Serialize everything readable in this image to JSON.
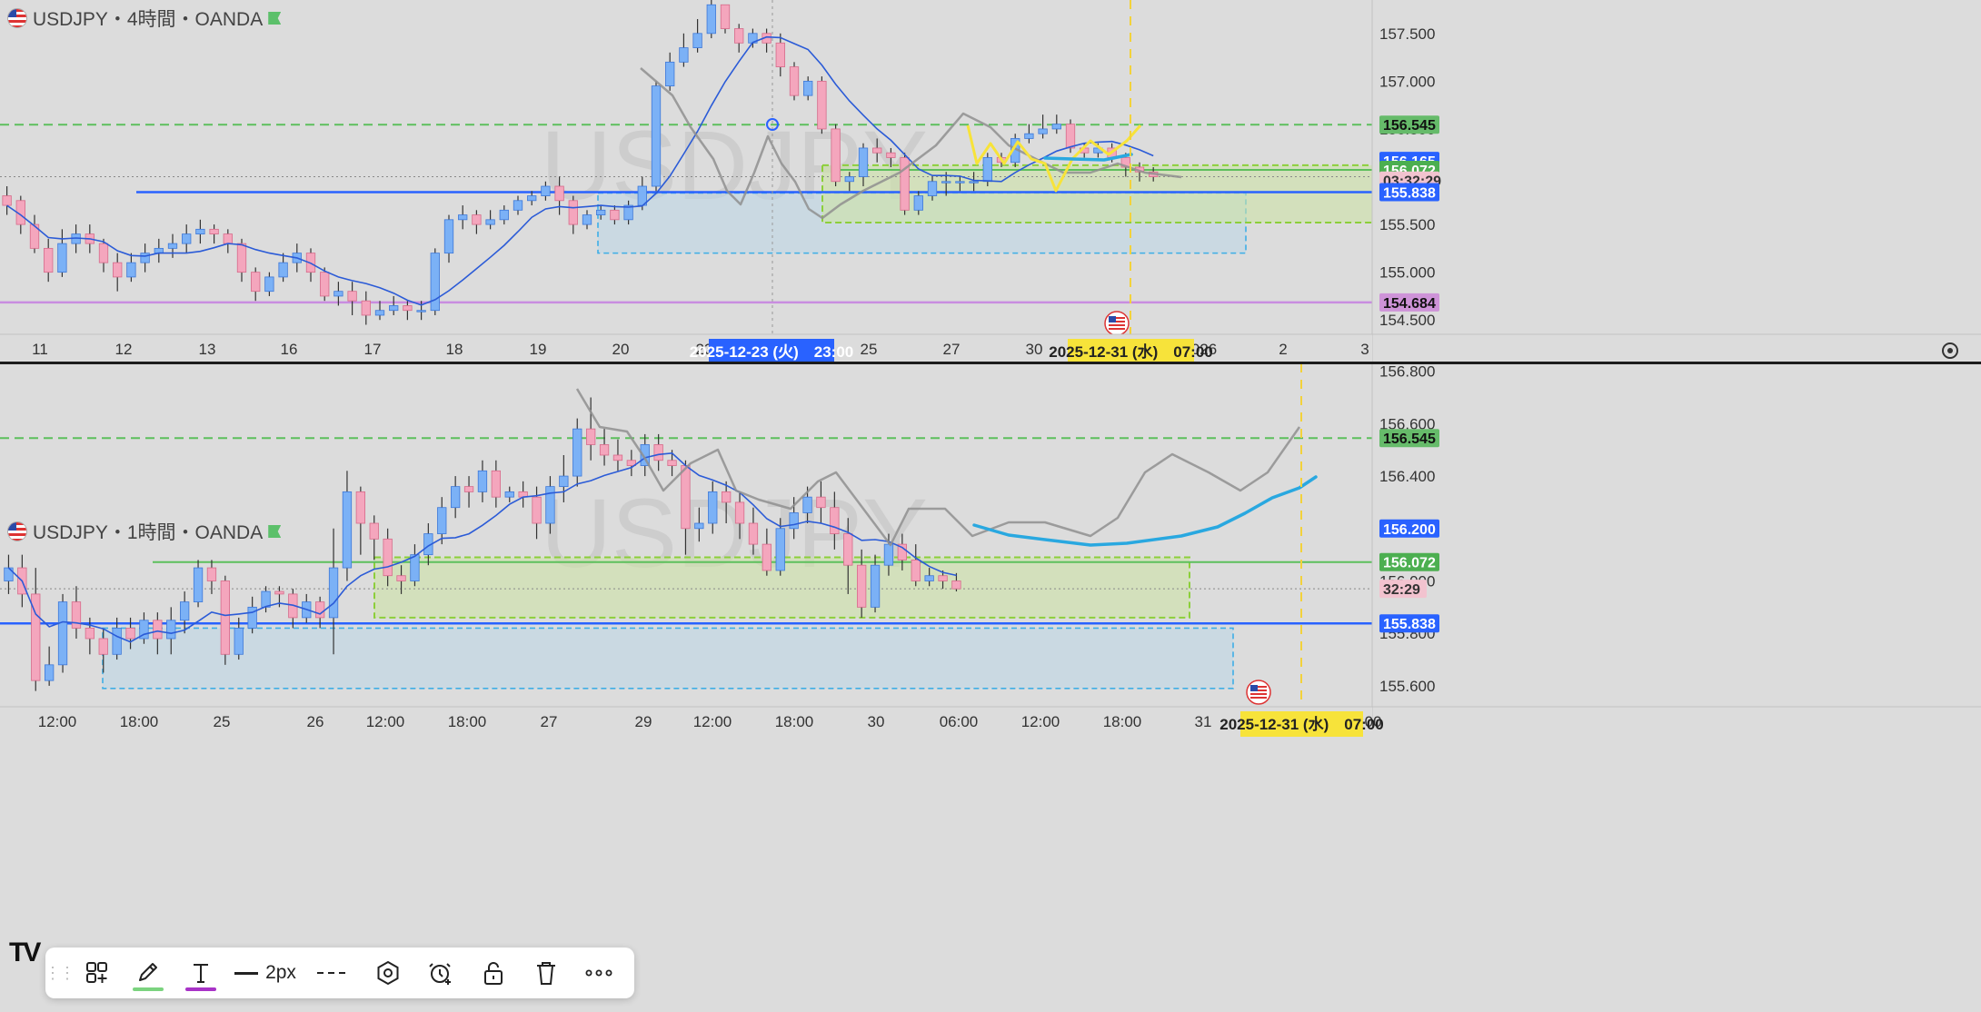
{
  "panes": [
    {
      "id": "top",
      "title": "USDJPY・4時間・OANDA",
      "watermark": "USDJPY",
      "price_axis": {
        "min": 154.35,
        "max": 157.85,
        "ticks": [
          "157.500",
          "157.000",
          "156.500",
          "156.000",
          "155.500",
          "155.000",
          "154.500"
        ],
        "tick_values": [
          157.5,
          157.0,
          156.5,
          156.0,
          155.5,
          155.0,
          154.5
        ]
      },
      "time_labels": [
        "11",
        "12",
        "13",
        "16",
        "17",
        "18",
        "19",
        "20",
        "23",
        "25",
        "27",
        "30",
        "026",
        "2",
        "3"
      ],
      "price_labels": [
        {
          "text": "156.545",
          "value": 156.545,
          "bg": "#66bb6a",
          "fg": "#111111"
        },
        {
          "text": "156.165",
          "value": 156.165,
          "bg": "#2962ff",
          "fg": "#ffffff"
        },
        {
          "text": "156.072",
          "value": 156.072,
          "bg": "#4caf50",
          "fg": "#ffffff"
        },
        {
          "text": "03:32:29",
          "value": 155.96,
          "bg": "#f2c3cf",
          "fg": "#333333"
        },
        {
          "text": "155.838",
          "value": 155.838,
          "bg": "#2962ff",
          "fg": "#ffffff"
        },
        {
          "text": "154.684",
          "value": 154.684,
          "bg": "#ce93d8",
          "fg": "#111111"
        }
      ],
      "crosshair_time_label": "2025-12-23 (火)　23:00",
      "event_time_label": "2025-12-31 (水)　07:00"
    },
    {
      "id": "bottom",
      "title": "USDJPY・1時間・OANDA",
      "watermark": "USDJPY",
      "price_axis": {
        "min": 155.52,
        "max": 156.83,
        "ticks": [
          "156.800",
          "156.600",
          "156.400",
          "156.200",
          "156.000",
          "155.800",
          "155.600"
        ],
        "tick_values": [
          156.8,
          156.6,
          156.4,
          156.2,
          156.0,
          155.8,
          155.6
        ]
      },
      "time_labels": [
        "12:00",
        "18:00",
        "25",
        "26",
        "12:00",
        "18:00",
        "27",
        "29",
        "12:00",
        "18:00",
        "30",
        "06:00",
        "12:00",
        "18:00",
        "31",
        "2:00"
      ],
      "price_labels": [
        {
          "text": "156.545",
          "value": 156.545,
          "bg": "#66bb6a",
          "fg": "#111111"
        },
        {
          "text": "156.200",
          "value": 156.2,
          "bg": "#2962ff",
          "fg": "#ffffff"
        },
        {
          "text": "156.072",
          "value": 156.072,
          "bg": "#4caf50",
          "fg": "#ffffff"
        },
        {
          "text": "32:29",
          "value": 155.97,
          "bg": "#f2c3cf",
          "fg": "#333333"
        },
        {
          "text": "155.838",
          "value": 155.838,
          "bg": "#2962ff",
          "fg": "#ffffff"
        }
      ],
      "event_time_label": "2025-12-31 (水)　07:00"
    }
  ],
  "colors": {
    "up": "#7bb1f6",
    "down": "#f4a6bd",
    "ma": "#2b5bd7",
    "forecast": "#29a8e0",
    "hand": "#8f8f8f",
    "yellow": "#f7e33a",
    "support": "#2962ff",
    "magenta": "#c98de0",
    "resistance": "#5cbf5c"
  },
  "toolbar": {
    "width_label": "2px",
    "items": [
      "drag-handle",
      "add-to-favorites-icon",
      "pencil-icon",
      "text-tool-icon",
      "line-width",
      "line-style-dashed-icon",
      "settings-hexagon-icon",
      "alert-clock-icon",
      "lock-icon",
      "trash-icon",
      "more-icon"
    ]
  },
  "chart_data": [
    {
      "type": "candlestick",
      "title": "USDJPY・4時間・OANDA",
      "ylim": [
        154.35,
        157.85
      ],
      "x_tick_labels": [
        "11",
        "12",
        "13",
        "16",
        "17",
        "18",
        "19",
        "20",
        "23",
        "25",
        "27",
        "30",
        "026",
        "2",
        "3"
      ],
      "y_tick_labels": [
        "157.500",
        "157.000",
        "156.500",
        "156.000",
        "155.500",
        "155.000",
        "154.500"
      ],
      "horizontal_lines": [
        156.545,
        156.072,
        155.838,
        154.684
      ],
      "candles": [
        [
          155.8,
          155.7,
          155.6,
          155.9
        ],
        [
          155.75,
          155.5,
          155.4,
          155.8
        ],
        [
          155.5,
          155.25,
          155.2,
          155.6
        ],
        [
          155.25,
          155.0,
          154.9,
          155.35
        ],
        [
          155.0,
          155.3,
          154.95,
          155.45
        ],
        [
          155.3,
          155.4,
          155.2,
          155.5
        ],
        [
          155.4,
          155.3,
          155.2,
          155.5
        ],
        [
          155.3,
          155.1,
          155.0,
          155.35
        ],
        [
          155.1,
          154.95,
          154.8,
          155.2
        ],
        [
          154.95,
          155.1,
          154.9,
          155.2
        ],
        [
          155.1,
          155.2,
          155.0,
          155.3
        ],
        [
          155.2,
          155.25,
          155.1,
          155.35
        ],
        [
          155.25,
          155.3,
          155.15,
          155.4
        ],
        [
          155.3,
          155.4,
          155.2,
          155.5
        ],
        [
          155.4,
          155.45,
          155.3,
          155.55
        ],
        [
          155.45,
          155.4,
          155.3,
          155.5
        ],
        [
          155.4,
          155.3,
          155.2,
          155.45
        ],
        [
          155.3,
          155.0,
          154.9,
          155.35
        ],
        [
          155.0,
          154.8,
          154.7,
          155.05
        ],
        [
          154.8,
          154.95,
          154.75,
          155.0
        ],
        [
          154.95,
          155.1,
          154.9,
          155.2
        ],
        [
          155.1,
          155.2,
          155.0,
          155.3
        ],
        [
          155.2,
          155.0,
          154.9,
          155.25
        ],
        [
          155.0,
          154.75,
          154.7,
          155.05
        ],
        [
          154.75,
          154.8,
          154.65,
          154.9
        ],
        [
          154.8,
          154.7,
          154.55,
          154.9
        ],
        [
          154.7,
          154.55,
          154.45,
          154.8
        ],
        [
          154.55,
          154.6,
          154.5,
          154.7
        ],
        [
          154.6,
          154.65,
          154.55,
          154.75
        ],
        [
          154.65,
          154.6,
          154.5,
          154.7
        ],
        [
          154.6,
          154.6,
          154.5,
          154.7
        ],
        [
          154.6,
          155.2,
          154.55,
          155.25
        ],
        [
          155.2,
          155.55,
          155.1,
          155.6
        ],
        [
          155.55,
          155.6,
          155.45,
          155.7
        ],
        [
          155.6,
          155.5,
          155.4,
          155.65
        ],
        [
          155.5,
          155.55,
          155.45,
          155.65
        ],
        [
          155.55,
          155.65,
          155.5,
          155.7
        ],
        [
          155.65,
          155.75,
          155.6,
          155.8
        ],
        [
          155.75,
          155.8,
          155.7,
          155.85
        ],
        [
          155.8,
          155.9,
          155.75,
          155.95
        ],
        [
          155.9,
          155.75,
          155.6,
          156.0
        ],
        [
          155.75,
          155.5,
          155.4,
          155.8
        ],
        [
          155.5,
          155.6,
          155.45,
          155.65
        ],
        [
          155.6,
          155.65,
          155.55,
          155.7
        ],
        [
          155.65,
          155.55,
          155.5,
          155.7
        ],
        [
          155.55,
          155.7,
          155.5,
          155.75
        ],
        [
          155.7,
          155.9,
          155.65,
          156.0
        ],
        [
          155.9,
          156.95,
          155.85,
          157.0
        ],
        [
          156.95,
          157.2,
          156.9,
          157.3
        ],
        [
          157.2,
          157.35,
          157.15,
          157.5
        ],
        [
          157.35,
          157.5,
          157.3,
          157.65
        ],
        [
          157.5,
          157.8,
          157.45,
          157.85
        ],
        [
          157.8,
          157.55,
          157.5,
          157.8
        ],
        [
          157.55,
          157.4,
          157.3,
          157.6
        ],
        [
          157.4,
          157.5,
          157.35,
          157.55
        ],
        [
          157.5,
          157.4,
          157.3,
          157.55
        ],
        [
          157.4,
          157.15,
          157.05,
          157.5
        ],
        [
          157.15,
          156.85,
          156.8,
          157.2
        ],
        [
          156.85,
          157.0,
          156.8,
          157.05
        ],
        [
          157.0,
          156.5,
          156.45,
          157.05
        ],
        [
          156.5,
          155.95,
          155.9,
          156.55
        ],
        [
          155.95,
          156.0,
          155.85,
          156.05
        ],
        [
          156.0,
          156.3,
          155.9,
          156.35
        ],
        [
          156.3,
          156.25,
          156.15,
          156.4
        ],
        [
          156.25,
          156.2,
          156.1,
          156.3
        ],
        [
          156.2,
          155.65,
          155.6,
          156.25
        ],
        [
          155.65,
          155.8,
          155.6,
          155.85
        ],
        [
          155.8,
          155.95,
          155.75,
          156.0
        ],
        [
          155.95,
          155.95,
          155.8,
          156.05
        ],
        [
          155.95,
          155.95,
          155.85,
          156.0
        ],
        [
          155.95,
          155.95,
          155.85,
          156.05
        ],
        [
          155.95,
          156.2,
          155.9,
          156.25
        ],
        [
          156.2,
          156.15,
          156.1,
          156.25
        ],
        [
          156.15,
          156.4,
          156.1,
          156.45
        ],
        [
          156.4,
          156.45,
          156.35,
          156.55
        ],
        [
          156.45,
          156.5,
          156.4,
          156.65
        ],
        [
          156.5,
          156.55,
          156.45,
          156.65
        ],
        [
          156.55,
          156.3,
          156.25,
          156.6
        ],
        [
          156.3,
          156.25,
          156.2,
          156.35
        ],
        [
          156.25,
          156.3,
          156.2,
          156.35
        ],
        [
          156.3,
          156.2,
          156.15,
          156.35
        ],
        [
          156.2,
          156.1,
          156.0,
          156.25
        ],
        [
          156.1,
          156.05,
          155.95,
          156.15
        ],
        [
          156.05,
          156.0,
          155.95,
          156.1
        ]
      ]
    },
    {
      "type": "candlestick",
      "title": "USDJPY・1時間・OANDA",
      "ylim": [
        155.52,
        156.83
      ],
      "x_tick_labels": [
        "12:00",
        "18:00",
        "25",
        "26",
        "12:00",
        "18:00",
        "27",
        "29",
        "12:00",
        "18:00",
        "30",
        "06:00",
        "12:00",
        "18:00",
        "31",
        "2:00"
      ],
      "y_tick_labels": [
        "156.800",
        "156.600",
        "156.400",
        "156.200",
        "156.000",
        "155.800",
        "155.600"
      ],
      "horizontal_lines": [
        156.545,
        156.072,
        155.838
      ],
      "candles": [
        [
          156.0,
          156.05,
          155.95,
          156.1
        ],
        [
          156.05,
          155.95,
          155.9,
          156.1
        ],
        [
          155.95,
          155.62,
          155.58,
          156.05
        ],
        [
          155.62,
          155.68,
          155.6,
          155.75
        ],
        [
          155.68,
          155.92,
          155.65,
          155.95
        ],
        [
          155.92,
          155.82,
          155.78,
          155.98
        ],
        [
          155.82,
          155.78,
          155.72,
          155.86
        ],
        [
          155.78,
          155.72,
          155.65,
          155.82
        ],
        [
          155.72,
          155.82,
          155.7,
          155.86
        ],
        [
          155.82,
          155.78,
          155.74,
          155.86
        ],
        [
          155.78,
          155.85,
          155.76,
          155.88
        ],
        [
          155.85,
          155.78,
          155.72,
          155.88
        ],
        [
          155.78,
          155.85,
          155.72,
          155.9
        ],
        [
          155.85,
          155.92,
          155.8,
          155.96
        ],
        [
          155.92,
          156.05,
          155.9,
          156.08
        ],
        [
          156.05,
          156.0,
          155.95,
          156.08
        ],
        [
          156.0,
          155.72,
          155.68,
          156.02
        ],
        [
          155.72,
          155.82,
          155.7,
          155.86
        ],
        [
          155.82,
          155.9,
          155.8,
          155.94
        ],
        [
          155.9,
          155.96,
          155.88,
          155.98
        ],
        [
          155.96,
          155.95,
          155.9,
          155.98
        ],
        [
          155.95,
          155.86,
          155.82,
          155.97
        ],
        [
          155.86,
          155.92,
          155.84,
          155.95
        ],
        [
          155.92,
          155.86,
          155.82,
          155.94
        ],
        [
          155.86,
          156.05,
          155.72,
          156.2
        ],
        [
          156.05,
          156.34,
          156.0,
          156.42
        ],
        [
          156.34,
          156.22,
          156.1,
          156.36
        ],
        [
          156.22,
          156.16,
          156.08,
          156.25
        ],
        [
          156.16,
          156.02,
          155.98,
          156.2
        ],
        [
          156.02,
          156.0,
          155.95,
          156.06
        ],
        [
          156.0,
          156.1,
          155.98,
          156.14
        ],
        [
          156.1,
          156.18,
          156.06,
          156.22
        ],
        [
          156.18,
          156.28,
          156.14,
          156.32
        ],
        [
          156.28,
          156.36,
          156.24,
          156.4
        ],
        [
          156.36,
          156.34,
          156.28,
          156.4
        ],
        [
          156.34,
          156.42,
          156.3,
          156.46
        ],
        [
          156.42,
          156.32,
          156.28,
          156.46
        ],
        [
          156.32,
          156.34,
          156.3,
          156.36
        ],
        [
          156.34,
          156.32,
          156.28,
          156.38
        ],
        [
          156.32,
          156.22,
          156.16,
          156.36
        ],
        [
          156.22,
          156.36,
          156.18,
          156.4
        ],
        [
          156.36,
          156.4,
          156.3,
          156.48
        ],
        [
          156.4,
          156.58,
          156.36,
          156.62
        ],
        [
          156.58,
          156.52,
          156.46,
          156.7
        ],
        [
          156.52,
          156.48,
          156.44,
          156.58
        ],
        [
          156.48,
          156.46,
          156.42,
          156.54
        ],
        [
          156.46,
          156.44,
          156.4,
          156.5
        ],
        [
          156.44,
          156.52,
          156.4,
          156.56
        ],
        [
          156.52,
          156.46,
          156.42,
          156.56
        ],
        [
          156.46,
          156.44,
          156.4,
          156.5
        ],
        [
          156.44,
          156.2,
          156.1,
          156.46
        ],
        [
          156.2,
          156.22,
          156.15,
          156.28
        ],
        [
          156.22,
          156.34,
          156.18,
          156.38
        ],
        [
          156.34,
          156.3,
          156.22,
          156.38
        ],
        [
          156.3,
          156.22,
          156.16,
          156.34
        ],
        [
          156.22,
          156.14,
          156.1,
          156.28
        ],
        [
          156.14,
          156.04,
          156.02,
          156.2
        ],
        [
          156.04,
          156.2,
          156.02,
          156.24
        ],
        [
          156.2,
          156.26,
          156.16,
          156.32
        ],
        [
          156.26,
          156.32,
          156.22,
          156.36
        ],
        [
          156.32,
          156.28,
          156.22,
          156.38
        ],
        [
          156.28,
          156.18,
          156.12,
          156.34
        ],
        [
          156.18,
          156.06,
          155.95,
          156.24
        ],
        [
          156.06,
          155.9,
          155.86,
          156.12
        ],
        [
          155.9,
          156.06,
          155.88,
          156.1
        ],
        [
          156.06,
          156.14,
          156.02,
          156.18
        ],
        [
          156.14,
          156.08,
          156.04,
          156.18
        ],
        [
          156.08,
          156.0,
          155.98,
          156.14
        ],
        [
          156.0,
          156.02,
          155.98,
          156.05
        ],
        [
          156.02,
          156.0,
          155.97,
          156.04
        ],
        [
          156.0,
          155.97,
          155.96,
          156.03
        ]
      ]
    }
  ]
}
